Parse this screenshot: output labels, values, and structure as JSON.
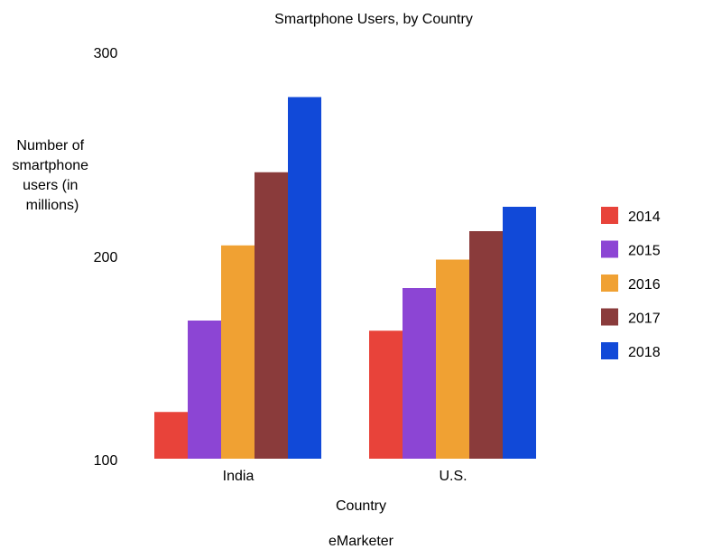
{
  "chart_data": {
    "type": "bar",
    "title": "Smartphone Users, by Country",
    "xlabel": "Country",
    "ylabel": [
      "Number of",
      "smartphone",
      "users (in",
      "millions)"
    ],
    "source": "eMarketer",
    "categories": [
      "India",
      "U.S."
    ],
    "yticks": [
      "300",
      "200",
      "100"
    ],
    "ylim": [
      100,
      300
    ],
    "grid": false,
    "legend_position": "right",
    "series": [
      {
        "name": "2014",
        "color": "#e8433a",
        "values": [
          123,
          163
        ]
      },
      {
        "name": "2015",
        "color": "#8c45d4",
        "values": [
          168,
          184
        ]
      },
      {
        "name": "2016",
        "color": "#f0a133",
        "values": [
          205,
          198
        ]
      },
      {
        "name": "2017",
        "color": "#8a3b3b",
        "values": [
          241,
          212
        ]
      },
      {
        "name": "2018",
        "color": "#1149d8",
        "values": [
          278,
          224
        ]
      }
    ]
  }
}
